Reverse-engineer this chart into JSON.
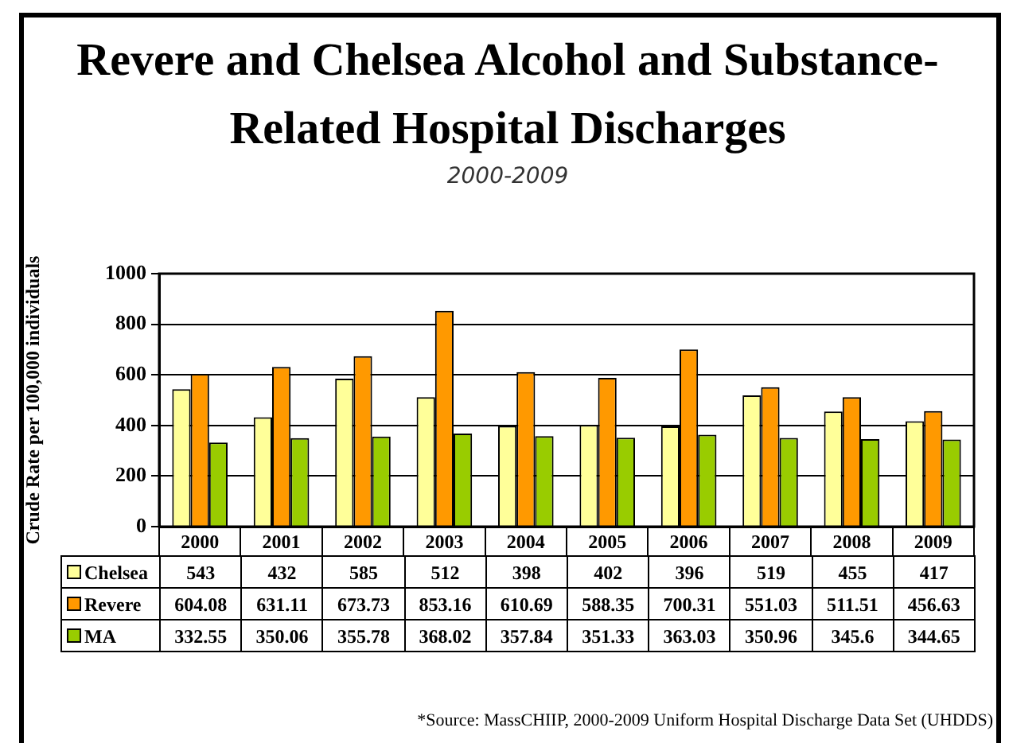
{
  "chart_data": {
    "type": "bar",
    "title": "Revere and Chelsea Alcohol and Substance-Related Hospital Discharges",
    "subtitle": "2000-2009",
    "ylabel": "Crude Rate per 100,000 individuals",
    "categories": [
      "2000",
      "2001",
      "2002",
      "2003",
      "2004",
      "2005",
      "2006",
      "2007",
      "2008",
      "2009"
    ],
    "series": [
      {
        "name": "Chelsea",
        "color": "#ffff99",
        "values": [
          543,
          432,
          585,
          512,
          398,
          402,
          396,
          519,
          455,
          417
        ]
      },
      {
        "name": "Revere",
        "color": "#ff9900",
        "values": [
          604.08,
          631.11,
          673.73,
          853.16,
          610.69,
          588.35,
          700.31,
          551.03,
          511.51,
          456.63
        ]
      },
      {
        "name": "MA",
        "color": "#99cc00",
        "values": [
          332.55,
          350.06,
          355.78,
          368.02,
          357.84,
          351.33,
          363.03,
          350.96,
          345.6,
          344.65
        ]
      }
    ],
    "ylim": [
      0,
      1000
    ],
    "yticks": [
      0,
      200,
      400,
      600,
      800,
      1000
    ],
    "grid": "y",
    "legend": "bottom",
    "data_labels": true,
    "annotations": [
      "*Source: MassCHIIP, 2000-2009 Uniform Hospital Discharge Data Set (UHDDS)"
    ]
  }
}
